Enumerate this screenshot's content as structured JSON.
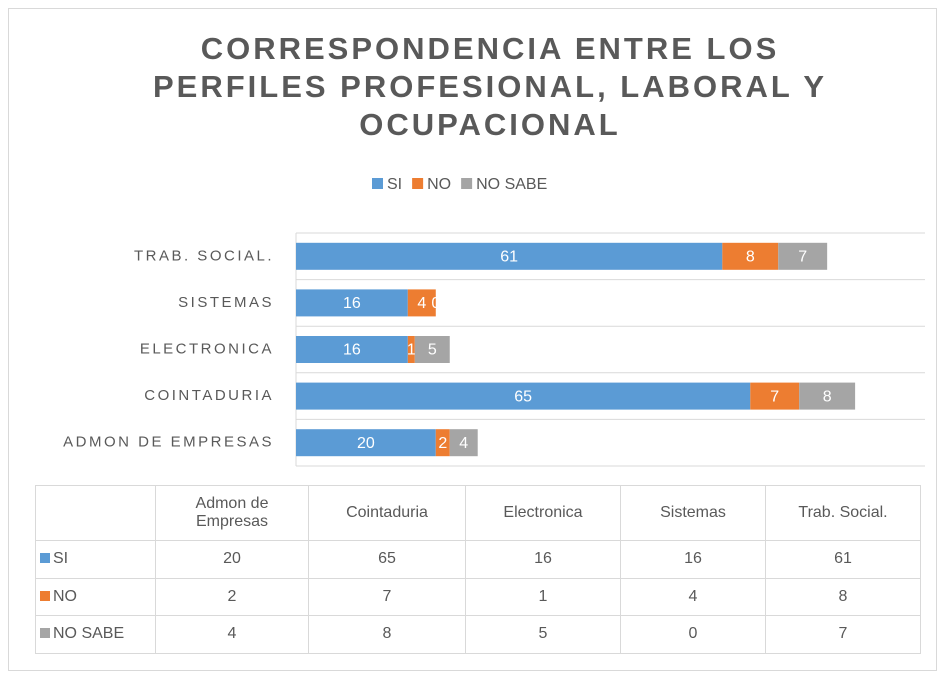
{
  "chart_data": {
    "type": "stacked_bar_horizontal",
    "title": "CORRESPONDENCIA ENTRE LOS PERFILES PROFESIONAL, LABORAL Y OCUPACIONAL",
    "categories": [
      "Admon de Empresas",
      "Cointaduria",
      "Electronica",
      "Sistemas",
      "Trab. Social."
    ],
    "series": [
      {
        "name": "SI",
        "color": "#5b9bd5",
        "values": [
          20,
          65,
          16,
          16,
          61
        ]
      },
      {
        "name": "NO",
        "color": "#ed7d31",
        "values": [
          2,
          7,
          1,
          4,
          8
        ]
      },
      {
        "name": "NO SABE",
        "color": "#a5a5a5",
        "values": [
          4,
          8,
          5,
          0,
          7
        ]
      }
    ],
    "xlim": [
      0,
      90
    ],
    "legend": "top",
    "data_table": true
  }
}
